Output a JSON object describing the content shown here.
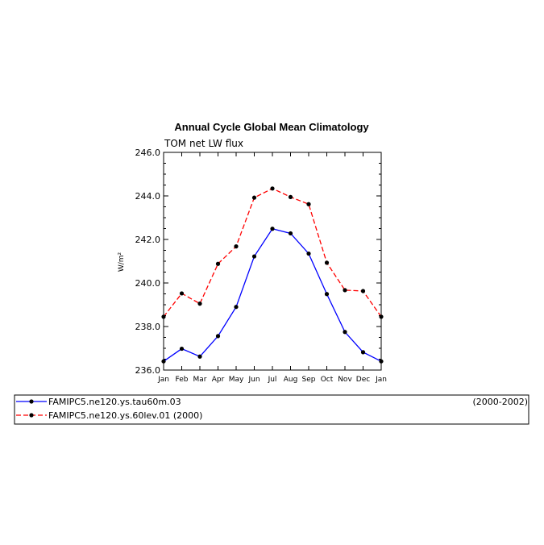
{
  "chart_data": {
    "type": "line",
    "title": "Annual Cycle Global Mean Climatology",
    "subtitle": "TOM net LW flux",
    "ylabel": "W/m²",
    "ylim": [
      236.0,
      246.0
    ],
    "yticks": [
      "236.0",
      "238.0",
      "240.0",
      "242.0",
      "244.0",
      "246.0"
    ],
    "categories": [
      "Jan",
      "Feb",
      "Mar",
      "Apr",
      "May",
      "Jun",
      "Jul",
      "Aug",
      "Sep",
      "Oct",
      "Nov",
      "Dec",
      "Jan"
    ],
    "series": [
      {
        "name": "FAMIPC5.ne120.ys.tau60m.03",
        "period": "(2000-2002)",
        "color": "#0000ff",
        "dash": "solid",
        "values": [
          236.4,
          236.98,
          236.62,
          237.56,
          238.9,
          241.22,
          242.49,
          242.28,
          241.35,
          239.49,
          237.75,
          236.82,
          236.4
        ]
      },
      {
        "name": "FAMIPC5.ne120.ys.60lev.01",
        "period": "(2000)",
        "color": "#ff0000",
        "dash": "dashed",
        "values": [
          238.45,
          239.52,
          239.05,
          240.88,
          241.68,
          243.92,
          244.34,
          243.95,
          243.62,
          240.93,
          239.67,
          239.63,
          238.45
        ]
      }
    ],
    "legend": "bottom"
  }
}
